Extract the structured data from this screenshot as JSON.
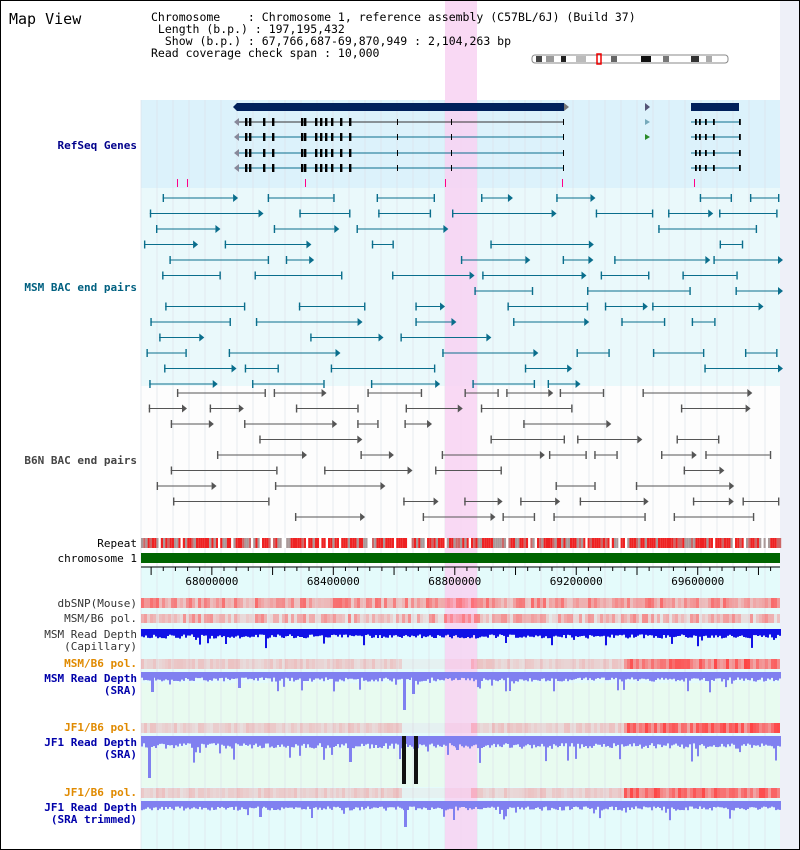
{
  "view_title": "Map View",
  "info_lines": [
    "Chromosome    : Chromosome 1, reference assembly (C57BL/6J) (Build 37)",
    " Length (b.p.) : 197,195,432",
    "  Show (b.p.) : 67,766,687-69,870,949 : 2,104,263 bp",
    "Read coverage check span : 10,000"
  ],
  "track_labels": {
    "refseq": "RefSeq Genes",
    "msm_bac": "MSM BAC end pairs",
    "b6n_bac": "B6N BAC end pairs",
    "repeat": "Repeat",
    "chromosome": "chromosome 1",
    "dbsnp": "dbSNP(Mouse)",
    "msm_b6_pol": "MSM/B6 pol.",
    "msm_read_cap_1": "MSM Read Depth",
    "msm_read_cap_2": "(Capillary)",
    "msm_b6_pol2": "MSM/B6 pol.",
    "msm_read_sra_1": "MSM Read Depth",
    "msm_read_sra_2": "(SRA)",
    "jf1_b6_pol": "JF1/B6 pol.",
    "jf1_read_sra_1": "JF1 Read Depth",
    "jf1_read_sra_2": "(SRA)",
    "jf1_b6_pol2": "JF1/B6 pol.",
    "jf1_read_trim_1": "JF1 Read Depth",
    "jf1_read_trim_2": "(SRA trimmed)"
  },
  "ruler": {
    "labels": [
      "68000000",
      "68400000",
      "68800000",
      "69200000",
      "69600000"
    ],
    "positions": [
      68000000,
      68400000,
      68800000,
      69200000,
      69600000
    ]
  },
  "region": {
    "start": 67766687,
    "end": 69870949
  },
  "colors": {
    "gene_bg": "#dcf2fb",
    "msm_bg": "#eaf9fb",
    "depth_bg": "#e8fbf0",
    "highlight": "#f8d2f2",
    "gene": "#00205b",
    "msm": "#0a6e8c",
    "b6n": "#555555",
    "chrom": "#006400",
    "depth_blue": "#1010e6",
    "depth_light": "#8080f0",
    "pol_red": "#ff3b3b"
  }
}
